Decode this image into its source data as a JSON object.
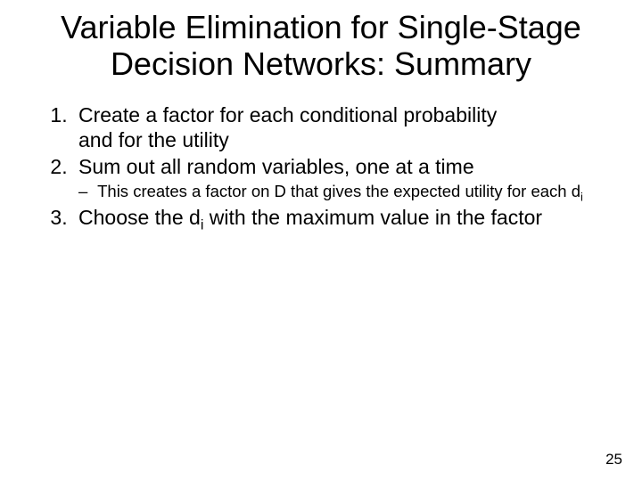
{
  "title_line1": "Variable Elimination for Single-Stage",
  "title_line2": "Decision Networks: Summary",
  "item1_a": "Create a factor for each conditional probability",
  "item1_b": "and for the utility",
  "item2": "Sum out all random variables, one at a time",
  "sub2_a": "This creates a factor on D that gives the expected utility for each d",
  "sub2_i": "i",
  "item3_a": "Choose the d",
  "item3_i": "i",
  "item3_b": " with the maximum value in the factor",
  "pagenum": "25"
}
